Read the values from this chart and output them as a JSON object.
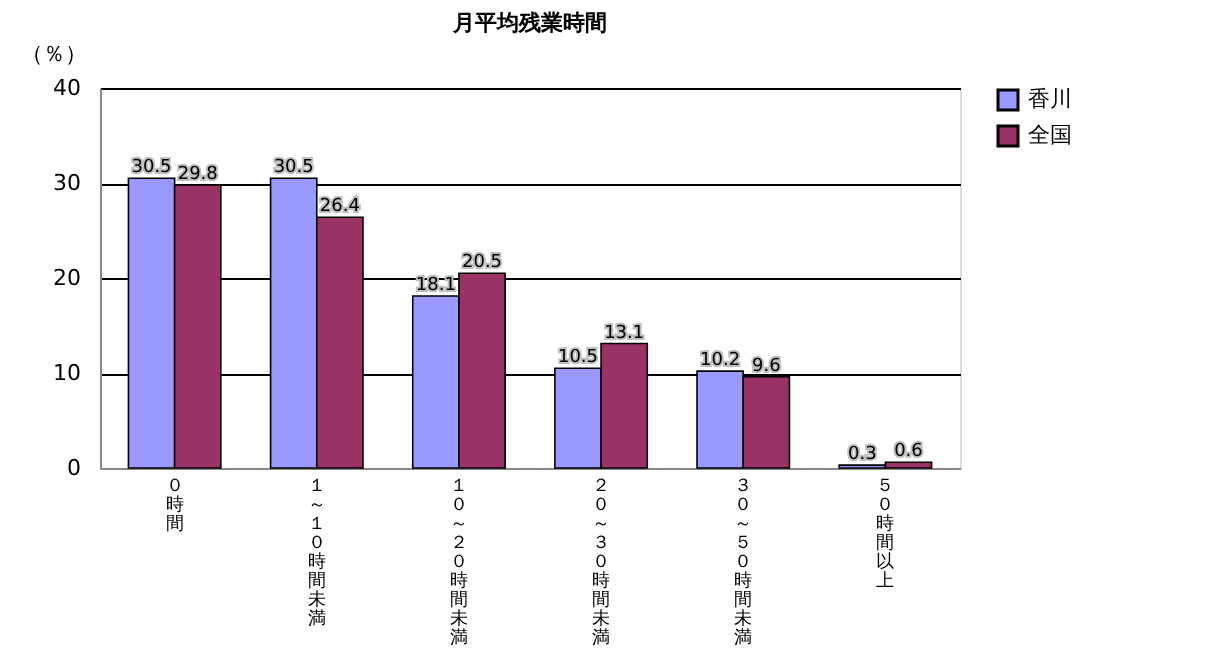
{
  "chart_data": {
    "type": "bar",
    "title": "月平均残業時間",
    "ylabel": "（％）",
    "categories": [
      "０時間",
      "１～１０時間未満",
      "１０～２０時間未満",
      "２０～３０時間未満",
      "３０～５０時間未満",
      "５０時間以上"
    ],
    "series": [
      {
        "name": "香川",
        "color": "#9999ff",
        "values": [
          30.5,
          30.5,
          18.1,
          10.5,
          10.2,
          0.3
        ]
      },
      {
        "name": "全国",
        "color": "#993366",
        "values": [
          29.8,
          26.4,
          20.5,
          13.1,
          9.6,
          0.6
        ]
      }
    ],
    "ylim": [
      0,
      40
    ],
    "yticks": [
      0,
      10,
      20,
      30,
      40
    ],
    "grid": "y",
    "legend": "right",
    "data_labels": true
  }
}
